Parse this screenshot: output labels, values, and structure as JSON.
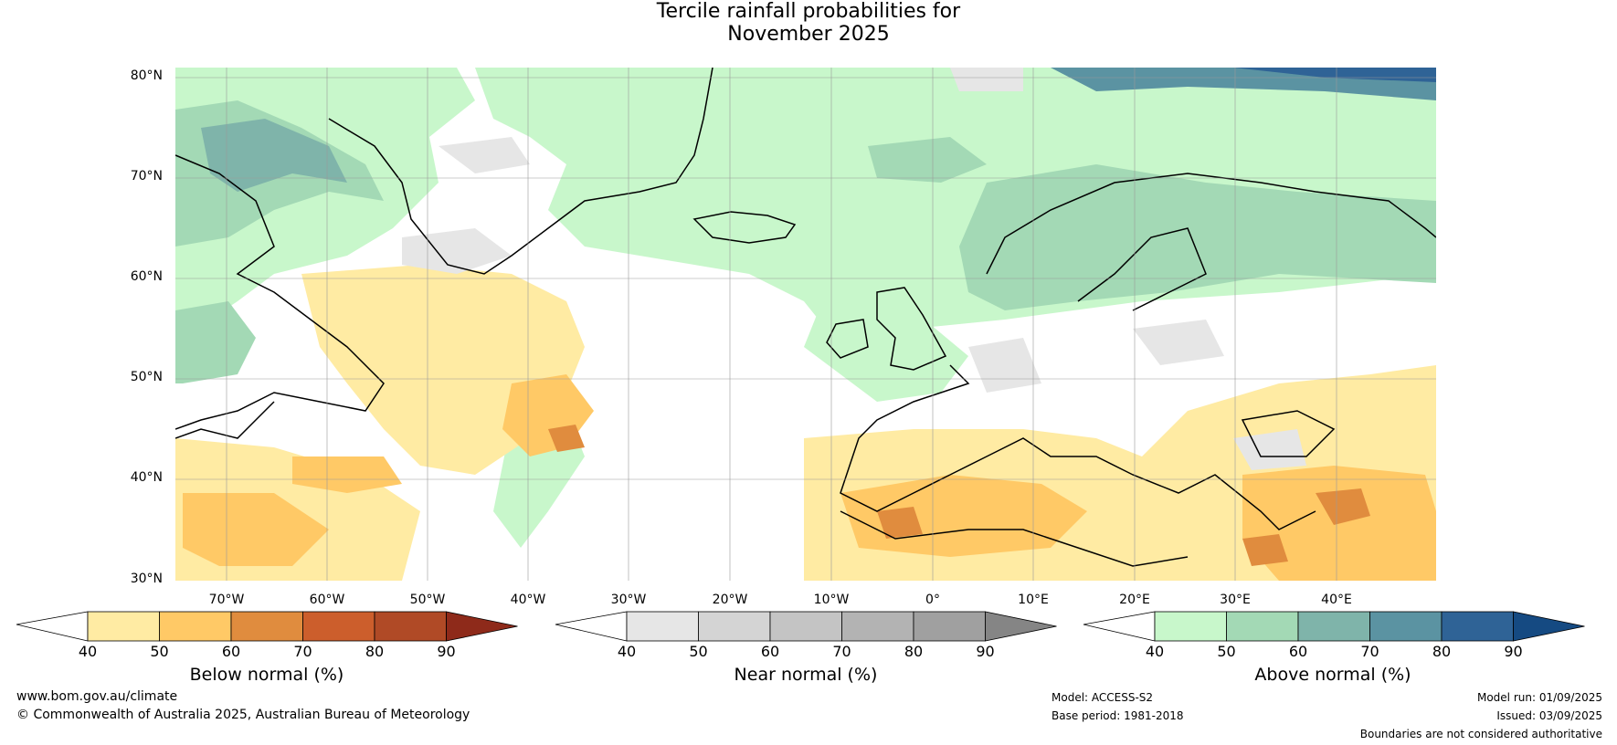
{
  "title_line1": "Tercile rainfall probabilities for",
  "title_line2": "November 2025",
  "latitude_labels": [
    "80°N",
    "70°N",
    "60°N",
    "50°N",
    "40°N",
    "30°N"
  ],
  "longitude_labels": [
    "70°W",
    "60°W",
    "50°W",
    "40°W",
    "30°W",
    "20°W",
    "10°W",
    "0°",
    "10°E",
    "20°E",
    "30°E",
    "40°E"
  ],
  "colorbars": [
    {
      "name": "Below normal (%)",
      "ticks": [
        "40",
        "50",
        "60",
        "70",
        "80",
        "90"
      ],
      "colors": [
        "#ffffff",
        "#ffeba3",
        "#ffc966",
        "#e08c3e",
        "#cc5e2c",
        "#b04a26",
        "#8e2a1a"
      ]
    },
    {
      "name": "Near normal (%)",
      "ticks": [
        "40",
        "50",
        "60",
        "70",
        "80",
        "90"
      ],
      "colors": [
        "#ffffff",
        "#e6e6e6",
        "#d4d4d4",
        "#c4c4c4",
        "#b3b3b3",
        "#a0a0a0",
        "#858585"
      ]
    },
    {
      "name": "Above normal (%)",
      "ticks": [
        "40",
        "50",
        "60",
        "70",
        "80",
        "90"
      ],
      "colors": [
        "#ffffff",
        "#c8f7cb",
        "#a3d9b5",
        "#7fb4aa",
        "#5b93a2",
        "#2f6396",
        "#154a82"
      ]
    }
  ],
  "footer": {
    "website": "www.bom.gov.au/climate",
    "copyright": "© Commonwealth of Australia 2025, Australian Bureau of Meteorology",
    "model": "Model: ACCESS-S2",
    "base_period": "Base period: 1981-2018",
    "model_run": "Model run: 01/09/2025",
    "issued": "Issued: 03/09/2025",
    "disclaimer": "Boundaries are not considered authoritative"
  }
}
